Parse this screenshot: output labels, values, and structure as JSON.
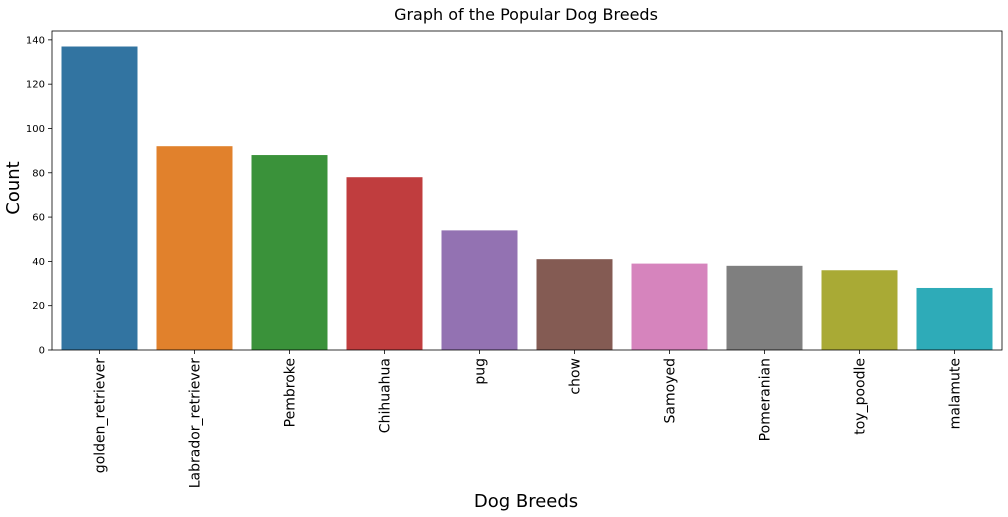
{
  "chart_data": {
    "type": "bar",
    "title": "Graph of the Popular Dog Breeds",
    "xlabel": "Dog Breeds",
    "ylabel": "Count",
    "categories": [
      "golden_retriever",
      "Labrador_retriever",
      "Pembroke",
      "Chihuahua",
      "pug",
      "chow",
      "Samoyed",
      "Pomeranian",
      "toy_poodle",
      "malamute"
    ],
    "values": [
      137,
      92,
      88,
      78,
      54,
      41,
      39,
      38,
      36,
      28
    ],
    "colors": [
      "#3274a1",
      "#e1812c",
      "#3a923a",
      "#c03d3e",
      "#9372b2",
      "#845b53",
      "#d684bd",
      "#7f7f7f",
      "#a9aa35",
      "#2eabb8"
    ],
    "ylim": [
      0,
      144
    ],
    "yticks": [
      0,
      20,
      40,
      60,
      80,
      100,
      120,
      140
    ],
    "grid": false,
    "legend": "none"
  }
}
